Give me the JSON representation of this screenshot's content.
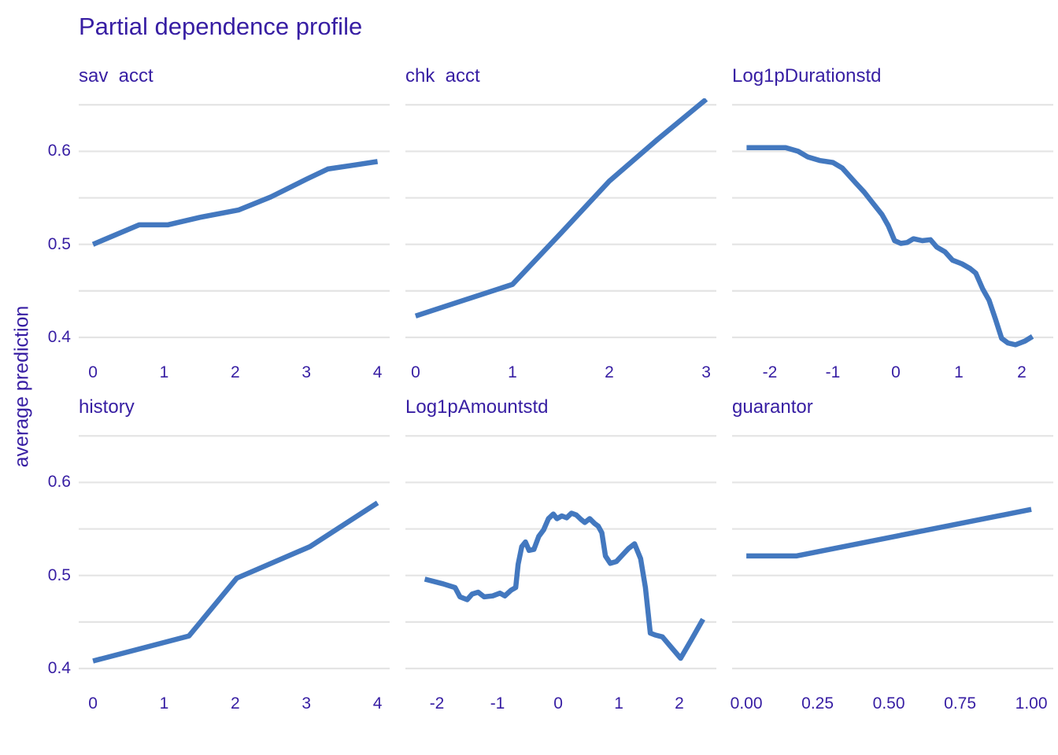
{
  "chart_data": {
    "type": "line",
    "title": "Partial dependence profile",
    "ylabel": "average prediction",
    "line_color": "#4378bf",
    "text_color": "#371ea3",
    "grid_color": "#e4e4e4",
    "legend_position": "none",
    "grid": "horizontal-only",
    "ylim": [
      0.378,
      0.657
    ],
    "y_gridlines": [
      0.4,
      0.45,
      0.5,
      0.55,
      0.6,
      0.65
    ],
    "y_ticks": [
      {
        "label": "0.6",
        "value": 0.6
      },
      {
        "label": "0.5",
        "value": 0.5
      },
      {
        "label": "0.4",
        "value": 0.4
      }
    ],
    "facets": [
      {
        "label": "sav  acct",
        "xlim": [
          -0.2,
          4.17
        ],
        "x_ticks": [
          {
            "label": "0",
            "value": 0
          },
          {
            "label": "1",
            "value": 1
          },
          {
            "label": "2",
            "value": 2
          },
          {
            "label": "3",
            "value": 3
          },
          {
            "label": "4",
            "value": 4
          }
        ],
        "points": [
          [
            0,
            0.5
          ],
          [
            0.65,
            0.521
          ],
          [
            1.05,
            0.521
          ],
          [
            1.5,
            0.529
          ],
          [
            2.05,
            0.537
          ],
          [
            2.5,
            0.551
          ],
          [
            3.0,
            0.57
          ],
          [
            3.3,
            0.581
          ],
          [
            3.65,
            0.585
          ],
          [
            4,
            0.589
          ]
        ]
      },
      {
        "label": "chk  acct",
        "xlim": [
          -0.105,
          3.105
        ],
        "x_ticks": [
          {
            "label": "0",
            "value": 0
          },
          {
            "label": "1",
            "value": 1
          },
          {
            "label": "2",
            "value": 2
          },
          {
            "label": "3",
            "value": 3
          }
        ],
        "points": [
          [
            0,
            0.423
          ],
          [
            0.5,
            0.44
          ],
          [
            1,
            0.457
          ],
          [
            1.5,
            0.512
          ],
          [
            2,
            0.568
          ],
          [
            2.5,
            0.613
          ],
          [
            3,
            0.656
          ]
        ]
      },
      {
        "label": "Log1pDurationstd",
        "xlim": [
          -2.6,
          2.5
        ],
        "x_ticks": [
          {
            "label": "-2",
            "value": -2
          },
          {
            "label": "-1",
            "value": -1
          },
          {
            "label": "0",
            "value": 0
          },
          {
            "label": "1",
            "value": 1
          },
          {
            "label": "2",
            "value": 2
          }
        ],
        "points": [
          [
            -2.37,
            0.604
          ],
          [
            -1.75,
            0.604
          ],
          [
            -1.55,
            0.6
          ],
          [
            -1.4,
            0.594
          ],
          [
            -1.2,
            0.59
          ],
          [
            -1.0,
            0.588
          ],
          [
            -0.85,
            0.582
          ],
          [
            -0.65,
            0.567
          ],
          [
            -0.5,
            0.556
          ],
          [
            -0.35,
            0.543
          ],
          [
            -0.22,
            0.532
          ],
          [
            -0.12,
            0.52
          ],
          [
            -0.02,
            0.504
          ],
          [
            0.08,
            0.501
          ],
          [
            0.18,
            0.502
          ],
          [
            0.28,
            0.506
          ],
          [
            0.42,
            0.504
          ],
          [
            0.55,
            0.505
          ],
          [
            0.65,
            0.497
          ],
          [
            0.78,
            0.492
          ],
          [
            0.9,
            0.483
          ],
          [
            1.05,
            0.479
          ],
          [
            1.18,
            0.474
          ],
          [
            1.27,
            0.469
          ],
          [
            1.38,
            0.452
          ],
          [
            1.48,
            0.44
          ],
          [
            1.58,
            0.42
          ],
          [
            1.68,
            0.399
          ],
          [
            1.78,
            0.394
          ],
          [
            1.9,
            0.392
          ],
          [
            2.05,
            0.396
          ],
          [
            2.17,
            0.401
          ]
        ]
      },
      {
        "label": "history",
        "xlim": [
          -0.2,
          4.17
        ],
        "x_ticks": [
          {
            "label": "0",
            "value": 0
          },
          {
            "label": "1",
            "value": 1
          },
          {
            "label": "2",
            "value": 2
          },
          {
            "label": "3",
            "value": 3
          },
          {
            "label": "4",
            "value": 4
          }
        ],
        "points": [
          [
            0,
            0.408
          ],
          [
            0.7,
            0.422
          ],
          [
            1.35,
            0.435
          ],
          [
            2.02,
            0.497
          ],
          [
            3.05,
            0.531
          ],
          [
            4,
            0.578
          ]
        ]
      },
      {
        "label": "Log1pAmountstd",
        "xlim": [
          -2.52,
          2.61
        ],
        "x_ticks": [
          {
            "label": "-2",
            "value": -2
          },
          {
            "label": "-1",
            "value": -1
          },
          {
            "label": "0",
            "value": 0
          },
          {
            "label": "1",
            "value": 1
          },
          {
            "label": "2",
            "value": 2
          }
        ],
        "points": [
          [
            -2.2,
            0.496
          ],
          [
            -1.9,
            0.491
          ],
          [
            -1.7,
            0.487
          ],
          [
            -1.62,
            0.477
          ],
          [
            -1.5,
            0.474
          ],
          [
            -1.42,
            0.48
          ],
          [
            -1.32,
            0.482
          ],
          [
            -1.22,
            0.477
          ],
          [
            -1.08,
            0.478
          ],
          [
            -0.96,
            0.481
          ],
          [
            -0.88,
            0.478
          ],
          [
            -0.78,
            0.484
          ],
          [
            -0.7,
            0.487
          ],
          [
            -0.66,
            0.512
          ],
          [
            -0.6,
            0.531
          ],
          [
            -0.54,
            0.536
          ],
          [
            -0.48,
            0.527
          ],
          [
            -0.4,
            0.528
          ],
          [
            -0.32,
            0.542
          ],
          [
            -0.24,
            0.549
          ],
          [
            -0.16,
            0.561
          ],
          [
            -0.08,
            0.566
          ],
          [
            -0.02,
            0.561
          ],
          [
            0.06,
            0.564
          ],
          [
            0.14,
            0.562
          ],
          [
            0.22,
            0.567
          ],
          [
            0.3,
            0.565
          ],
          [
            0.38,
            0.56
          ],
          [
            0.44,
            0.557
          ],
          [
            0.52,
            0.561
          ],
          [
            0.6,
            0.556
          ],
          [
            0.66,
            0.553
          ],
          [
            0.72,
            0.546
          ],
          [
            0.78,
            0.521
          ],
          [
            0.86,
            0.513
          ],
          [
            0.96,
            0.515
          ],
          [
            1.06,
            0.522
          ],
          [
            1.16,
            0.529
          ],
          [
            1.26,
            0.534
          ],
          [
            1.36,
            0.518
          ],
          [
            1.44,
            0.487
          ],
          [
            1.52,
            0.438
          ],
          [
            1.6,
            0.436
          ],
          [
            1.72,
            0.434
          ],
          [
            1.85,
            0.424
          ],
          [
            2.02,
            0.411
          ],
          [
            2.2,
            0.431
          ],
          [
            2.39,
            0.453
          ]
        ]
      },
      {
        "label": "guarantor",
        "xlim": [
          -0.05,
          1.077
        ],
        "x_ticks": [
          {
            "label": "0.00",
            "value": 0
          },
          {
            "label": "0.25",
            "value": 0.25
          },
          {
            "label": "0.50",
            "value": 0.5
          },
          {
            "label": "0.75",
            "value": 0.75
          },
          {
            "label": "1.00",
            "value": 1
          }
        ],
        "points": [
          [
            0,
            0.521
          ],
          [
            0.175,
            0.521
          ],
          [
            1,
            0.571
          ]
        ]
      }
    ]
  }
}
